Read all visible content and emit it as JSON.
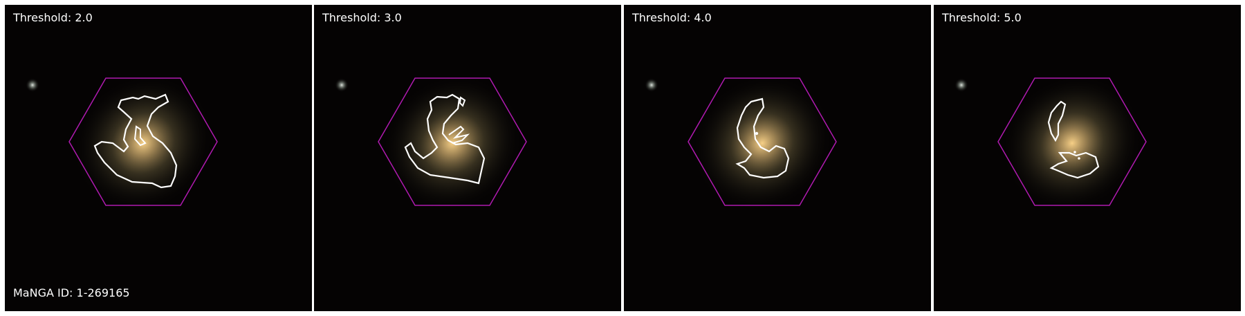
{
  "figure": {
    "manga_id_label": "MaNGA ID: 1-269165",
    "panels": [
      {
        "threshold_label": "Threshold: 2.0"
      },
      {
        "threshold_label": "Threshold: 3.0"
      },
      {
        "threshold_label": "Threshold: 4.0"
      },
      {
        "threshold_label": "Threshold: 5.0"
      }
    ]
  },
  "colors": {
    "hexagon": "#b01ab0",
    "contour": "#ffffff",
    "background": "#050303",
    "galaxy_core": "#f2c070"
  }
}
